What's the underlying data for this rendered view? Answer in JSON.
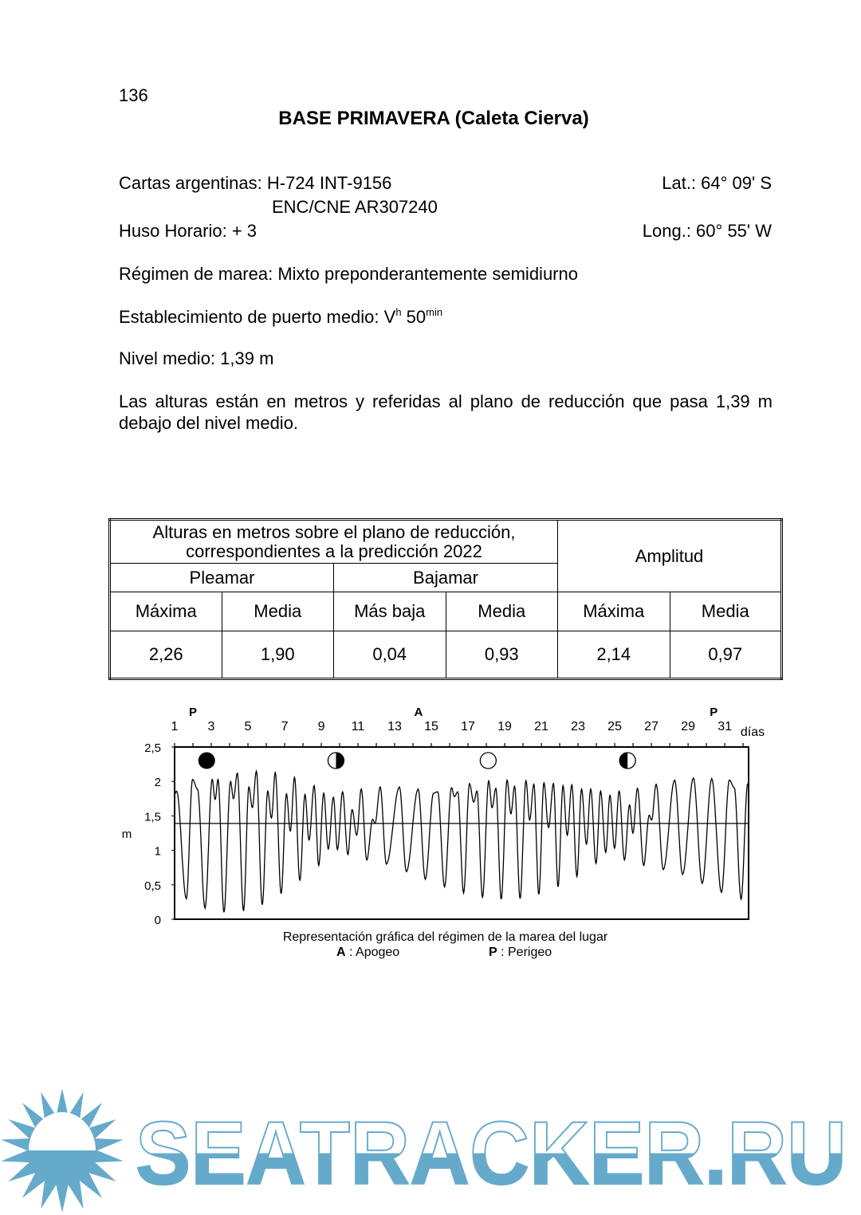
{
  "page_number": "136",
  "title": "BASE PRIMAVERA (Caleta Cierva)",
  "info": {
    "cartas_label": "Cartas argentinas: H-724 INT-9156",
    "cartas_line2": "ENC/CNE AR307240",
    "lat": "Lat.: 64° 09' S",
    "huso": "Huso Horario: + 3",
    "long": "Long.: 60° 55' W",
    "regimen": "Régimen de marea: Mixto preponderantemente semidiurno",
    "establecimiento_prefix": "Establecimiento de puerto medio: V",
    "establecimiento_sup1": "h",
    "establecimiento_mid": " 50",
    "establecimiento_sup2": "min",
    "nivel_medio": "Nivel medio: 1,39 m",
    "alturas_note": "Las alturas están en metros y referidas al plano de reducción que pasa 1,39 m debajo del nivel medio."
  },
  "table": {
    "header_line1": "Alturas en metros sobre el plano de reducción,",
    "header_line2": "correspondientes a la predicción 2022",
    "amplitud": "Amplitud",
    "pleamar": "Pleamar",
    "bajamar": "Bajamar",
    "columns": [
      "Máxima",
      "Media",
      "Más baja",
      "Media",
      "Máxima",
      "Media"
    ],
    "values": [
      "2,26",
      "1,90",
      "0,04",
      "0,93",
      "2,14",
      "0,97"
    ]
  },
  "chart_data": {
    "type": "line",
    "xlabel": "días",
    "ylabel": "m",
    "xlim": [
      1,
      32.3
    ],
    "ylim": [
      0,
      2.5
    ],
    "x_tick_labels": [
      "1",
      "3",
      "5",
      "7",
      "9",
      "11",
      "13",
      "15",
      "17",
      "19",
      "21",
      "23",
      "25",
      "27",
      "29",
      "31"
    ],
    "y_tick_labels": [
      "0",
      "0,5",
      "1",
      "1,5",
      "2",
      "2,5"
    ],
    "mean_level": 1.39,
    "line_color": "#000000",
    "markers": [
      {
        "label": "P",
        "day": 2.0
      },
      {
        "label": "A",
        "day": 14.3
      },
      {
        "label": "P",
        "day": 30.4
      }
    ],
    "moon_phases": [
      {
        "phase": "new-moon",
        "day": 2.75
      },
      {
        "phase": "first-quarter",
        "day": 9.8
      },
      {
        "phase": "full-moon",
        "day": 18.1
      },
      {
        "phase": "last-quarter",
        "day": 25.7
      }
    ],
    "extremes": {
      "day": [
        1.0,
        1.11,
        1.64,
        1.98,
        2.25,
        2.66,
        3.05,
        3.21,
        3.37,
        3.69,
        4.05,
        4.21,
        4.42,
        4.76,
        5.05,
        5.24,
        5.46,
        5.78,
        6.08,
        6.28,
        6.49,
        6.81,
        7.1,
        7.31,
        7.54,
        7.83,
        8.11,
        8.33,
        8.61,
        8.86,
        9.13,
        9.38,
        9.66,
        9.88,
        10.16,
        10.45,
        10.68,
        10.93,
        11.18,
        11.48,
        11.8,
        11.93,
        12.21,
        12.55,
        13.26,
        13.64,
        14.28,
        14.67,
        15.12,
        15.35,
        15.72,
        16.1,
        16.26,
        16.44,
        16.76,
        17.08,
        17.31,
        17.49,
        17.79,
        18.13,
        18.31,
        18.52,
        18.81,
        19.13,
        19.34,
        19.54,
        19.84,
        20.16,
        20.36,
        20.59,
        20.86,
        21.14,
        21.39,
        21.66,
        21.91,
        22.18,
        22.41,
        22.66,
        22.94,
        23.19,
        23.46,
        23.69,
        23.98,
        24.23,
        24.51,
        24.74,
        24.99,
        25.24,
        25.53,
        25.81,
        25.99,
        26.24,
        26.58,
        26.88,
        27.01,
        27.26,
        27.65,
        28.27,
        28.7,
        29.29,
        29.77,
        30.29,
        30.82,
        31.25,
        31.52,
        31.89,
        32.25
      ],
      "height": [
        1.82,
        1.86,
        0.3,
        2.03,
        1.89,
        0.16,
        2.03,
        1.74,
        2.03,
        0.1,
        2.0,
        1.75,
        2.12,
        0.12,
        1.92,
        1.62,
        2.15,
        0.21,
        1.86,
        1.47,
        2.13,
        0.37,
        1.82,
        1.28,
        2.06,
        0.56,
        1.81,
        1.15,
        1.94,
        0.78,
        1.83,
        1.02,
        1.77,
        1.01,
        1.85,
        0.94,
        1.59,
        1.22,
        1.89,
        0.86,
        1.45,
        1.39,
        1.92,
        0.8,
        1.92,
        0.69,
        1.89,
        0.58,
        1.83,
        1.85,
        0.47,
        1.91,
        1.78,
        1.85,
        0.38,
        1.97,
        1.7,
        1.86,
        0.32,
        2.01,
        1.62,
        1.9,
        0.29,
        2.02,
        1.53,
        1.93,
        0.3,
        2.01,
        1.44,
        1.96,
        0.36,
        1.98,
        1.33,
        1.97,
        0.47,
        1.94,
        1.22,
        1.95,
        0.62,
        1.89,
        1.09,
        1.89,
        0.81,
        1.86,
        0.97,
        1.8,
        1.03,
        1.86,
        0.86,
        1.66,
        1.25,
        1.9,
        0.78,
        1.51,
        1.44,
        1.96,
        0.72,
        2.02,
        0.65,
        2.05,
        0.52,
        2.04,
        0.39,
        2.02,
        1.91,
        0.29,
        1.97
      ]
    }
  },
  "caption": {
    "line1": "Representación gráfica del régimen de la marea del lugar",
    "apogeo_key": "A",
    "apogeo_text": " : Apogeo",
    "perigeo_key": "P",
    "perigeo_text": " : Perigeo"
  },
  "watermark": {
    "text": "SEATRACKER.RU",
    "color": "#66aacb"
  }
}
